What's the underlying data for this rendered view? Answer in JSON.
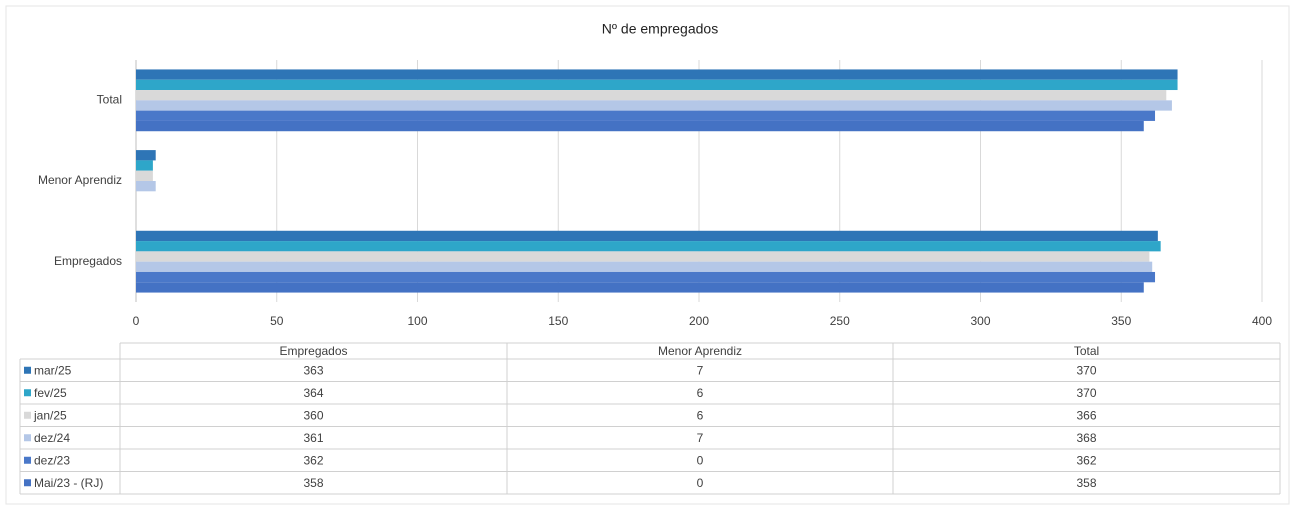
{
  "chart_data": {
    "type": "bar",
    "orientation": "horizontal",
    "title": "Nº de empregados",
    "categories": [
      "Empregados",
      "Menor Aprendiz",
      "Total"
    ],
    "series": [
      {
        "name": "mar/25",
        "color": "#2e75b6",
        "values": [
          363,
          7,
          370
        ]
      },
      {
        "name": "fev/25",
        "color": "#2ea6c9",
        "values": [
          364,
          6,
          370
        ]
      },
      {
        "name": "jan/25",
        "color": "#d9d9d9",
        "values": [
          360,
          6,
          366
        ]
      },
      {
        "name": "dez/24",
        "color": "#b4c7e7",
        "values": [
          361,
          7,
          368
        ]
      },
      {
        "name": "dez/23",
        "color": "#4a78c9",
        "values": [
          362,
          0,
          362
        ]
      },
      {
        "name": "Mai/23 - (RJ)",
        "color": "#4472c4",
        "values": [
          358,
          0,
          358
        ]
      }
    ],
    "xlim": [
      0,
      400
    ],
    "xticks": [
      0,
      50,
      100,
      150,
      200,
      250,
      300,
      350,
      400
    ],
    "grid": true
  }
}
